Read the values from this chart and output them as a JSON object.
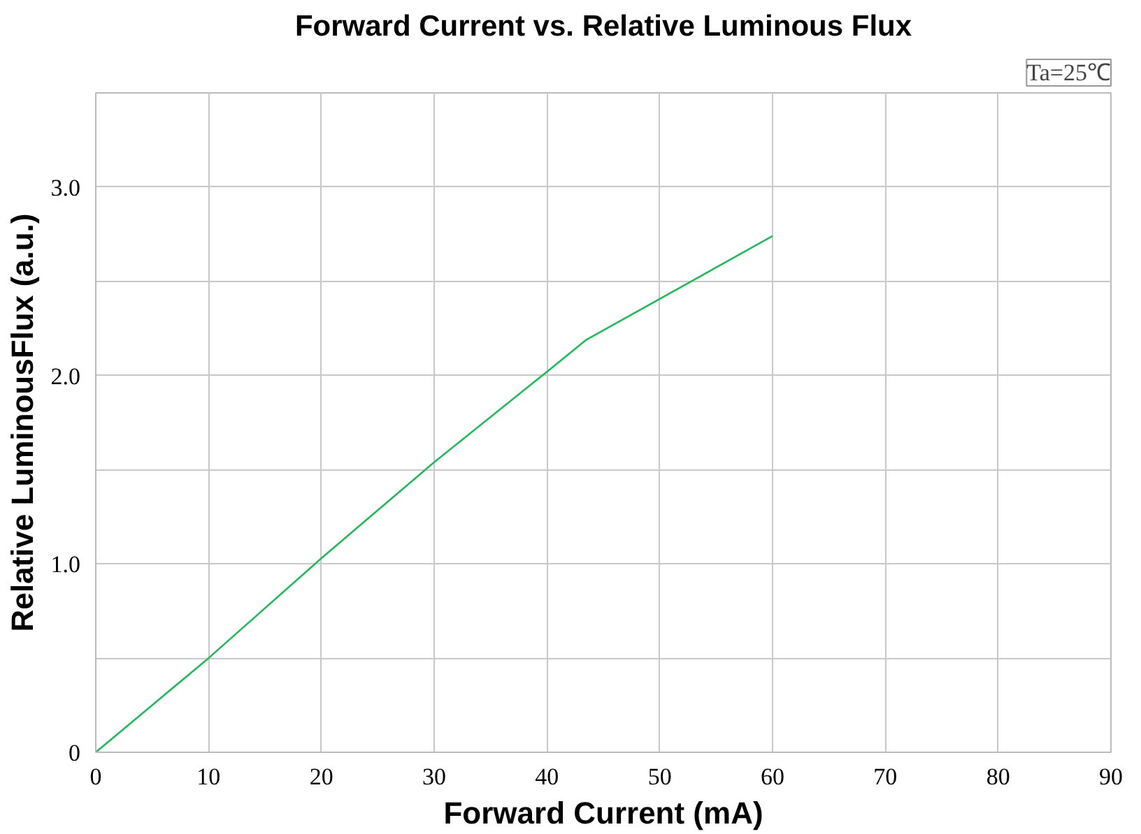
{
  "chart_data": {
    "type": "line",
    "title": "Forward Current vs. Relative Luminous Flux",
    "xlabel": "Forward Current (mA)",
    "ylabel": "Relative LuminousFlux (a.u.)",
    "annotations": [
      "Ta=25℃"
    ],
    "x": [
      0,
      10,
      20,
      30,
      40,
      43.5,
      60
    ],
    "series": [
      {
        "color": "#22b95a",
        "values": [
          0,
          0.5,
          1.03,
          1.54,
          2.02,
          2.19,
          2.74
        ]
      }
    ],
    "xlim": [
      0,
      90
    ],
    "xticks": [
      0,
      10,
      20,
      30,
      40,
      50,
      60,
      70,
      80,
      90
    ],
    "ylim": [
      0,
      3.5
    ],
    "yticks": [
      0,
      {
        "value": 0.5,
        "label": null
      },
      {
        "value": 1,
        "label": "1.0"
      },
      {
        "value": 1.5,
        "label": null
      },
      {
        "value": 2,
        "label": "2.0"
      },
      {
        "value": 2.5,
        "label": null
      },
      {
        "value": 3,
        "label": "3.0"
      }
    ],
    "grid": true,
    "marker": "none",
    "line_style": "solid"
  }
}
